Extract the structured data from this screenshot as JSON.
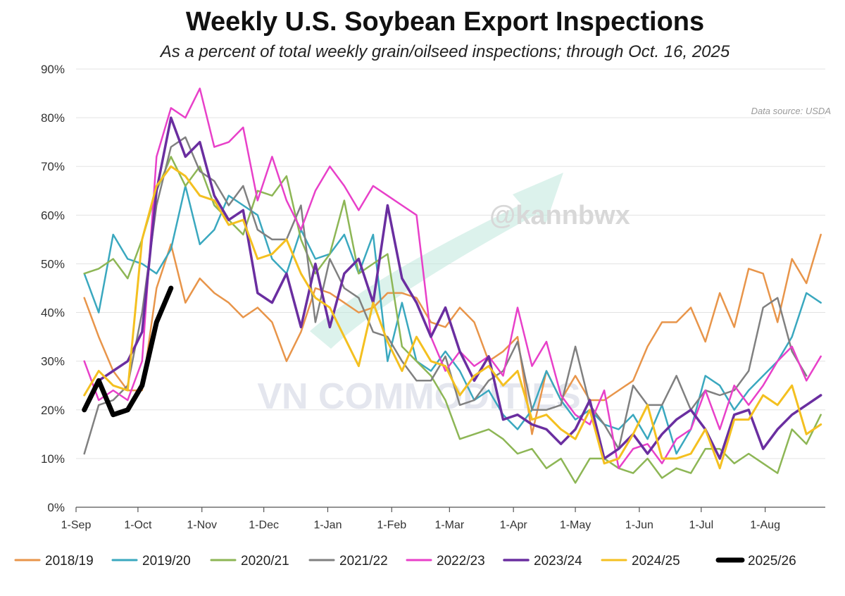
{
  "chart_data": {
    "type": "line",
    "title": "Weekly U.S. Soybean Export Inspections",
    "subtitle": "As a percent of total weekly grain/oilseed inspections; through Oct. 16, 2025",
    "source": "Data source: USDA",
    "watermarks": [
      "@kannbwx",
      "VN COMMODITIES"
    ],
    "ylim": [
      0,
      90
    ],
    "yticks": [
      "0%",
      "10%",
      "20%",
      "30%",
      "40%",
      "50%",
      "60%",
      "70%",
      "80%",
      "90%"
    ],
    "xtick_labels": [
      "1-Sep",
      "1-Oct",
      "1-Nov",
      "1-Dec",
      "1-Jan",
      "1-Feb",
      "1-Mar",
      "1-Apr",
      "1-May",
      "1-Jun",
      "1-Jul",
      "1-Aug"
    ],
    "xtick_days": [
      0,
      30,
      61,
      91,
      122,
      153,
      181,
      212,
      242,
      273,
      303,
      334
    ],
    "x_note": "x values are days since 1-Sep",
    "series": [
      {
        "name": "2018/19",
        "color": "#e8954a",
        "width": 2.5,
        "x": [
          4,
          11,
          18,
          25,
          32,
          39,
          46,
          53,
          60,
          67,
          74,
          81,
          88,
          95,
          102,
          109,
          116,
          123,
          130,
          137,
          144,
          151,
          158,
          165,
          172,
          179,
          186,
          193,
          200,
          207,
          214,
          221,
          228,
          235,
          242,
          249,
          256,
          263,
          270,
          277,
          284,
          291,
          298,
          305,
          312,
          319,
          326,
          333,
          340,
          347,
          354,
          361
        ],
        "values": [
          43,
          35,
          28,
          24,
          24,
          45,
          54,
          42,
          47,
          44,
          42,
          39,
          41,
          38,
          30,
          36,
          45,
          44,
          42,
          40,
          41,
          44,
          44,
          43,
          38,
          37,
          41,
          38,
          30,
          32,
          35,
          15,
          28,
          22,
          27,
          22,
          22,
          24,
          26,
          33,
          38,
          38,
          41,
          34,
          44,
          37,
          49,
          48,
          38,
          51,
          46,
          56
        ]
      },
      {
        "name": "2019/20",
        "color": "#3aa8bf",
        "width": 2.5,
        "x": [
          4,
          11,
          18,
          25,
          32,
          39,
          46,
          53,
          60,
          67,
          74,
          81,
          88,
          95,
          102,
          109,
          116,
          123,
          130,
          137,
          144,
          151,
          158,
          165,
          172,
          179,
          186,
          193,
          200,
          207,
          214,
          221,
          228,
          235,
          242,
          249,
          256,
          263,
          270,
          277,
          284,
          291,
          298,
          305,
          312,
          319,
          326,
          333,
          340,
          347,
          354,
          361
        ],
        "values": [
          48,
          40,
          56,
          51,
          50,
          48,
          53,
          66,
          54,
          57,
          64,
          62,
          60,
          51,
          48,
          57,
          51,
          52,
          56,
          48,
          56,
          30,
          42,
          30,
          28,
          32,
          28,
          22,
          24,
          19,
          16,
          20,
          28,
          22,
          18,
          20,
          17,
          16,
          19,
          14,
          21,
          11,
          16,
          27,
          25,
          20,
          24,
          27,
          30,
          35,
          44,
          42
        ]
      },
      {
        "name": "2020/21",
        "color": "#8db655",
        "width": 2.5,
        "x": [
          4,
          11,
          18,
          25,
          32,
          39,
          46,
          53,
          60,
          67,
          74,
          81,
          88,
          95,
          102,
          109,
          116,
          123,
          130,
          137,
          144,
          151,
          158,
          165,
          172,
          179,
          186,
          193,
          200,
          207,
          214,
          221,
          228,
          235,
          242,
          249,
          256,
          263,
          270,
          277,
          284,
          291,
          298,
          305,
          312,
          319,
          326,
          333,
          340,
          347,
          354,
          361
        ],
        "values": [
          48,
          49,
          51,
          47,
          55,
          65,
          72,
          66,
          70,
          62,
          59,
          56,
          65,
          64,
          68,
          55,
          48,
          52,
          63,
          48,
          50,
          52,
          33,
          30,
          27,
          22,
          14,
          15,
          16,
          14,
          11,
          12,
          8,
          10,
          5,
          10,
          10,
          8,
          7,
          10,
          6,
          8,
          7,
          12,
          12,
          9,
          11,
          9,
          7,
          16,
          13,
          19
        ]
      },
      {
        "name": "2021/22",
        "color": "#808080",
        "width": 2.5,
        "x": [
          4,
          11,
          18,
          25,
          32,
          39,
          46,
          53,
          60,
          67,
          74,
          81,
          88,
          95,
          102,
          109,
          116,
          123,
          130,
          137,
          144,
          151,
          158,
          165,
          172,
          179,
          186,
          193,
          200,
          207,
          214,
          221,
          228,
          235,
          242,
          249,
          256,
          263,
          270,
          277,
          284,
          291,
          298,
          305,
          312,
          319,
          326,
          333,
          340,
          347,
          354,
          361
        ],
        "values": [
          11,
          21,
          22,
          25,
          40,
          62,
          74,
          76,
          69,
          67,
          62,
          66,
          57,
          55,
          55,
          62,
          38,
          51,
          45,
          43,
          36,
          35,
          30,
          26,
          26,
          31,
          21,
          22,
          26,
          28,
          34,
          20,
          20,
          21,
          33,
          21,
          17,
          12,
          25,
          21,
          21,
          27,
          20,
          24,
          23,
          24,
          28,
          41,
          43,
          32,
          27,
          null
        ]
      },
      {
        "name": "2022/23",
        "color": "#e840c9",
        "width": 2.5,
        "x": [
          4,
          11,
          18,
          25,
          32,
          39,
          46,
          53,
          60,
          67,
          74,
          81,
          88,
          95,
          102,
          109,
          116,
          123,
          130,
          137,
          144,
          151,
          158,
          165,
          172,
          179,
          186,
          193,
          200,
          207,
          214,
          221,
          228,
          235,
          242,
          249,
          256,
          263,
          270,
          277,
          284,
          291,
          298,
          305,
          312,
          319,
          326,
          333,
          340,
          347,
          354,
          361
        ],
        "values": [
          30,
          22,
          24,
          22,
          30,
          72,
          82,
          80,
          86,
          74,
          75,
          78,
          63,
          72,
          63,
          57,
          65,
          70,
          66,
          61,
          66,
          64,
          62,
          60,
          35,
          28,
          32,
          29,
          31,
          27,
          41,
          29,
          34,
          23,
          19,
          17,
          24,
          8,
          12,
          13,
          9,
          14,
          16,
          24,
          16,
          25,
          21,
          25,
          30,
          33,
          26,
          31
        ]
      },
      {
        "name": "2023/24",
        "color": "#6a2ea0",
        "width": 3.5,
        "x": [
          4,
          11,
          18,
          25,
          32,
          39,
          46,
          53,
          60,
          67,
          74,
          81,
          88,
          95,
          102,
          109,
          116,
          123,
          130,
          137,
          144,
          151,
          158,
          165,
          172,
          179,
          186,
          193,
          200,
          207,
          214,
          221,
          228,
          235,
          242,
          249,
          256,
          263,
          270,
          277,
          284,
          291,
          298,
          305,
          312,
          319,
          326,
          333,
          340,
          347,
          354,
          361
        ],
        "values": [
          20,
          26,
          28,
          30,
          36,
          65,
          80,
          72,
          75,
          64,
          59,
          61,
          44,
          42,
          48,
          37,
          50,
          37,
          48,
          51,
          42,
          62,
          47,
          42,
          35,
          41,
          32,
          26,
          31,
          18,
          19,
          17,
          16,
          13,
          16,
          22,
          10,
          12,
          15,
          11,
          15,
          18,
          20,
          16,
          10,
          19,
          20,
          12,
          16,
          19,
          21,
          23
        ]
      },
      {
        "name": "2024/25",
        "color": "#f4c020",
        "width": 3,
        "x": [
          4,
          11,
          18,
          25,
          32,
          39,
          46,
          53,
          60,
          67,
          74,
          81,
          88,
          95,
          102,
          109,
          116,
          123,
          130,
          137,
          144,
          151,
          158,
          165,
          172,
          179,
          186,
          193,
          200,
          207,
          214,
          221,
          228,
          235,
          242,
          249,
          256,
          263,
          270,
          277,
          284,
          291,
          298,
          305,
          312,
          319,
          326,
          333,
          340,
          347,
          354,
          361
        ],
        "values": [
          23,
          28,
          25,
          24,
          55,
          66,
          70,
          68,
          64,
          63,
          58,
          59,
          51,
          52,
          55,
          48,
          43,
          41,
          35,
          29,
          42,
          34,
          28,
          35,
          30,
          29,
          23,
          27,
          29,
          25,
          28,
          18,
          19,
          16,
          14,
          20,
          9,
          10,
          15,
          21,
          10,
          10,
          11,
          16,
          8,
          18,
          18,
          23,
          21,
          25,
          15,
          17
        ]
      },
      {
        "name": "2025/26",
        "color": "#000000",
        "width": 7,
        "x": [
          4,
          11,
          18,
          25,
          32,
          39,
          46
        ],
        "values": [
          20,
          26,
          19,
          20,
          25,
          38,
          45
        ]
      }
    ]
  }
}
